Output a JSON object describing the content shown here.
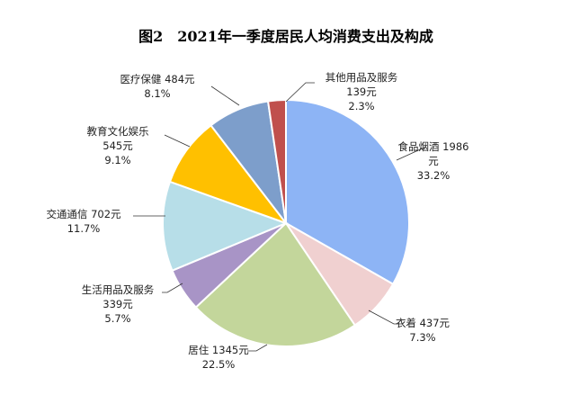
{
  "chart_data": {
    "type": "pie",
    "title": "图2　2021年一季度居民人均消费支出及构成",
    "slices": [
      {
        "name": "食品烟酒",
        "value": 1986,
        "unit": "元",
        "percent": "33.2%",
        "color": "#8DB4F5"
      },
      {
        "name": "衣着",
        "value": 437,
        "unit": "元",
        "percent": "7.3%",
        "color": "#F0D0D0"
      },
      {
        "name": "居住",
        "value": 1345,
        "unit": "元",
        "percent": "22.5%",
        "color": "#C3D69B"
      },
      {
        "name": "生活用品及服务",
        "value": 339,
        "unit": "元",
        "percent": "5.7%",
        "color": "#A894C6"
      },
      {
        "name": "交通通信",
        "value": 702,
        "unit": "元",
        "percent": "11.7%",
        "color": "#B7DEE8"
      },
      {
        "name": "教育文化娱乐",
        "value": 545,
        "unit": "元",
        "percent": "9.1%",
        "color": "#FFC000"
      },
      {
        "name": "医疗保健",
        "value": 484,
        "unit": "元",
        "percent": "8.1%",
        "color": "#7D9ECB"
      },
      {
        "name": "其他用品及服务",
        "value": 139,
        "unit": "元",
        "percent": "2.3%",
        "color": "#C0504D"
      }
    ],
    "legend": "none"
  }
}
